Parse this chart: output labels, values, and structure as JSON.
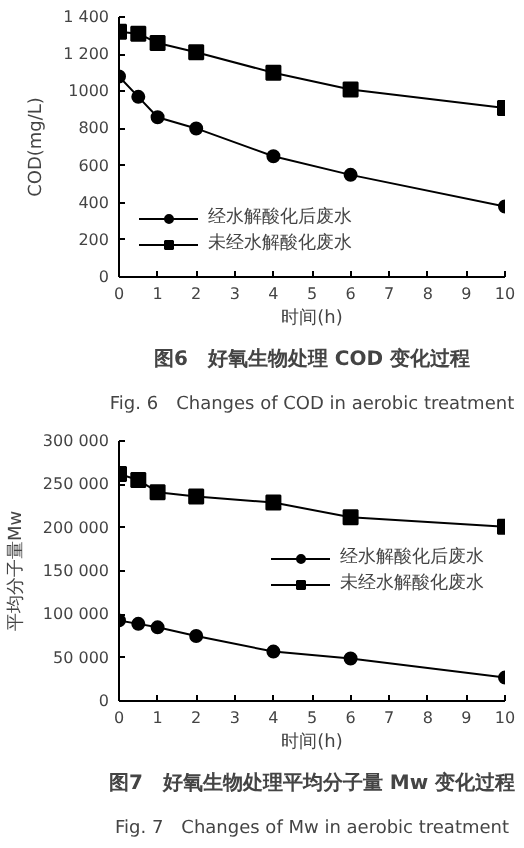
{
  "chart_data": [
    {
      "type": "line",
      "xlabel": "时间(h)",
      "ylabel": "COD(mg/L)",
      "x": [
        0,
        0.5,
        1,
        2,
        4,
        6,
        10
      ],
      "xlim": [
        0,
        10
      ],
      "xticks": [
        0,
        1,
        2,
        3,
        4,
        5,
        6,
        7,
        8,
        9,
        10
      ],
      "ylim": [
        0,
        1400
      ],
      "yticks": [
        0,
        200,
        400,
        600,
        800,
        1000,
        {
          "value": 1200,
          "label": "1 200"
        },
        {
          "value": 1400,
          "label": "1 400"
        }
      ],
      "grid": false,
      "legend": "bottom left",
      "series": [
        {
          "name": "经水解酸化后废水",
          "color": "#000000",
          "marker": "circle",
          "values": [
            1080,
            970,
            860,
            800,
            650,
            550,
            380
          ]
        },
        {
          "name": "未经水解酸化废水",
          "color": "#000000",
          "marker": "square",
          "values": [
            1320,
            1310,
            1260,
            1210,
            1100,
            1010,
            910
          ]
        }
      ],
      "annotations": [
        "图6　好氧生物处理 COD 变化过程",
        "Fig. 6　Changes of COD in aerobic treatment"
      ]
    },
    {
      "type": "line",
      "xlabel": "时间(h)",
      "ylabel": "平均分子量Mw",
      "x": [
        0,
        0.5,
        1,
        2,
        4,
        6,
        10
      ],
      "xlim": [
        0,
        10
      ],
      "xticks": [
        0,
        1,
        2,
        3,
        4,
        5,
        6,
        7,
        8,
        9,
        10
      ],
      "ylim": [
        0,
        300000
      ],
      "yticks": [
        0,
        {
          "value": 50000,
          "label": "50 000"
        },
        {
          "value": 100000,
          "label": "100 000"
        },
        {
          "value": 150000,
          "label": "150 000"
        },
        {
          "value": 200000,
          "label": "200 000"
        },
        {
          "value": 250000,
          "label": "250 000"
        },
        {
          "value": 300000,
          "label": "300 000"
        }
      ],
      "grid": false,
      "legend": "right",
      "series": [
        {
          "name": "经水解酸化后废水",
          "color": "#000000",
          "marker": "circle",
          "values": [
            93000,
            89000,
            85000,
            75000,
            57000,
            49000,
            27000
          ]
        },
        {
          "name": "未经水解酸化废水",
          "color": "#000000",
          "marker": "square",
          "values": [
            262000,
            255000,
            241000,
            236000,
            229000,
            212000,
            201000
          ]
        }
      ],
      "annotations": [
        "图7　好氧生物处理平均分子量 Mw 变化过程",
        "Fig. 7　Changes of Mw in aerobic treatment"
      ]
    }
  ]
}
